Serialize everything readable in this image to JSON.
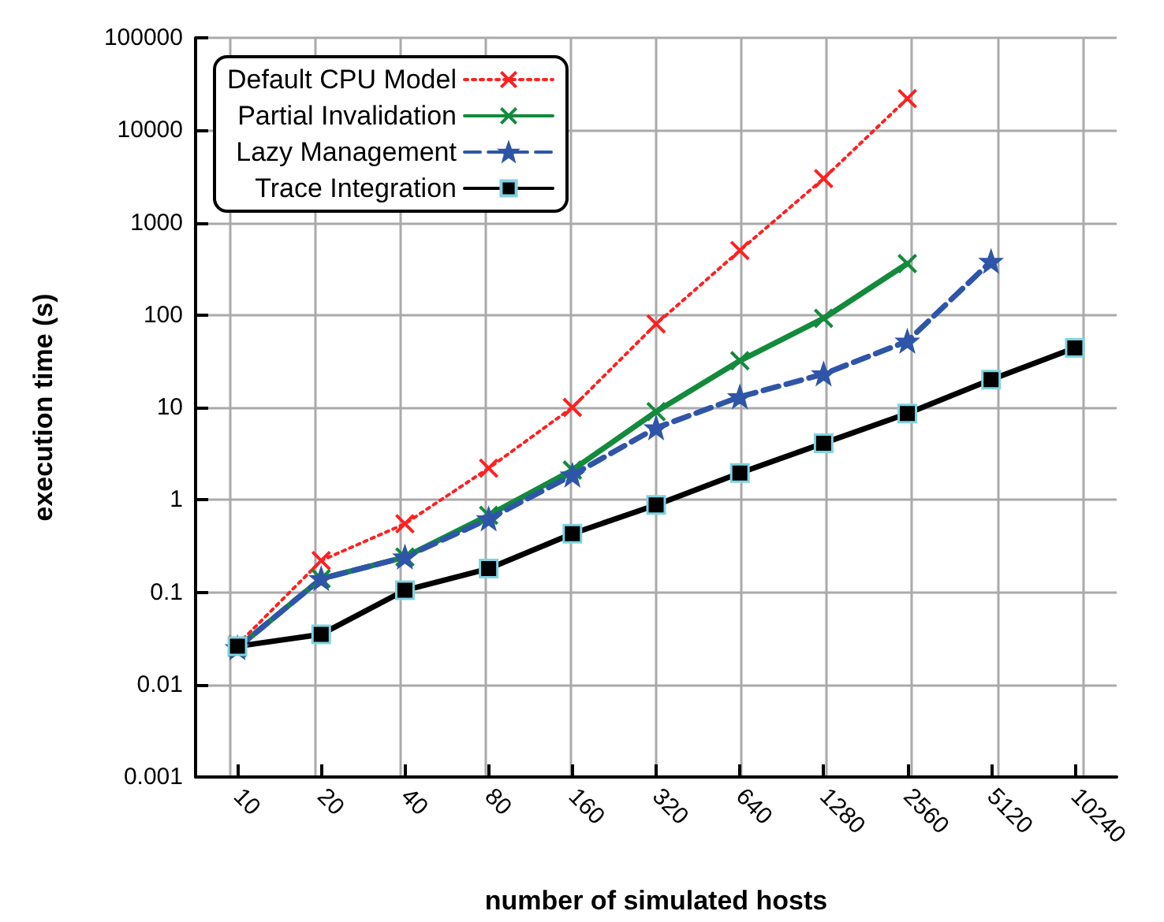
{
  "chart_data": {
    "type": "line",
    "xlabel": "number of simulated hosts",
    "ylabel": "execution time (s)",
    "categories": [
      "10",
      "20",
      "40",
      "80",
      "160",
      "320",
      "640",
      "1280",
      "2560",
      "5120",
      "10240"
    ],
    "log": "y",
    "ylim": [
      0.001,
      100000
    ],
    "yticks": [
      0.001,
      0.01,
      0.1,
      1,
      10,
      100,
      1000,
      10000,
      100000
    ],
    "grid": true,
    "legend": "top left",
    "series": [
      {
        "name": "Default CPU Model",
        "color": "#ff2020",
        "line_style": "dotted",
        "marker": "cross",
        "values": [
          0.027,
          0.22,
          0.55,
          2.2,
          10,
          80,
          500,
          3000,
          22000,
          null,
          null
        ]
      },
      {
        "name": "Partial Invalidation",
        "color": "#138a3c",
        "line_style": "solid",
        "marker": "cross",
        "values": [
          0.025,
          0.14,
          0.24,
          0.68,
          2.1,
          9,
          32,
          92,
          360,
          null,
          null
        ]
      },
      {
        "name": "Lazy Management",
        "color": "#2f55a8",
        "line_style": "dashed",
        "marker": "star",
        "values": [
          0.025,
          0.14,
          0.24,
          0.62,
          1.85,
          6,
          13,
          23,
          52,
          380,
          null
        ]
      },
      {
        "name": "Trace Integration",
        "color": "#000000",
        "line_style": "solid",
        "marker": "square",
        "values": [
          0.026,
          0.035,
          0.105,
          0.18,
          0.43,
          0.88,
          1.95,
          4.1,
          8.6,
          20,
          44
        ]
      }
    ]
  }
}
